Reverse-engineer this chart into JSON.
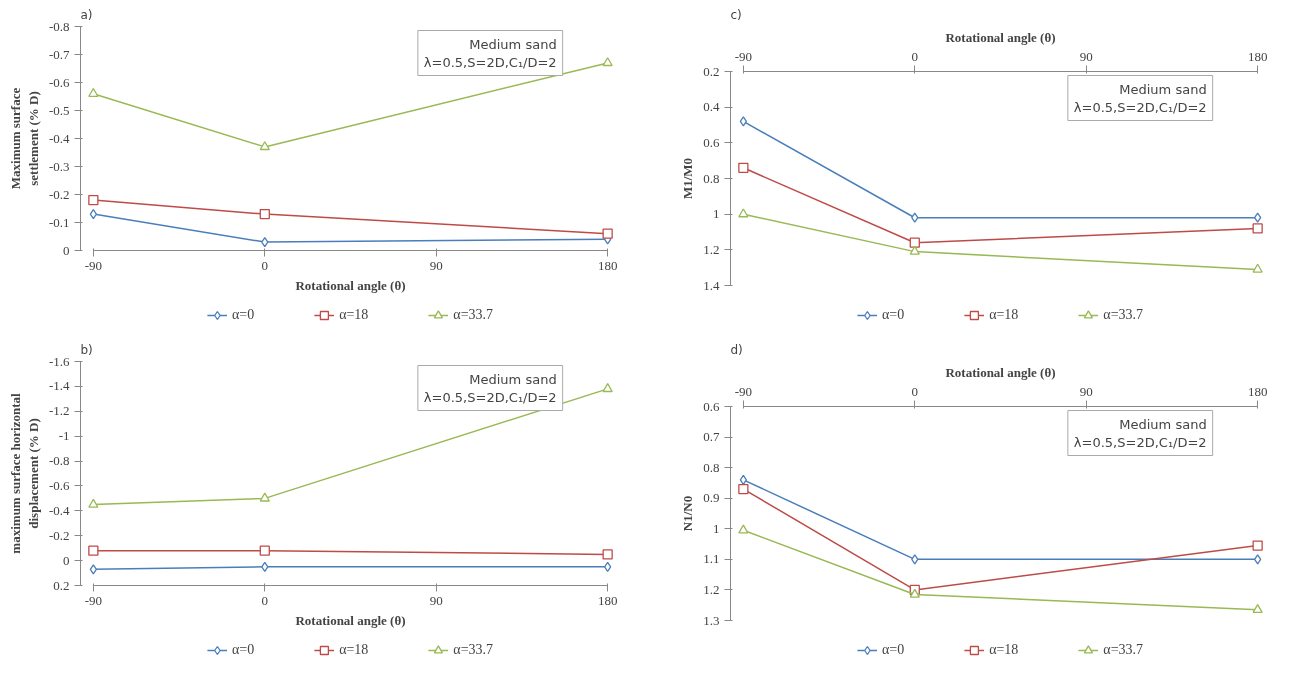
{
  "chart_data": [
    {
      "type": "line",
      "xlabel": "Rotational angle (θ)",
      "ylabel": "Maximum surface settlement (% D)",
      "x": [
        -90,
        0,
        180
      ],
      "xlim": [
        -90,
        180
      ],
      "xticks": [
        -90,
        0,
        90,
        180
      ],
      "ylim": [
        0,
        -0.8
      ],
      "yticks": [
        0,
        -0.1,
        -0.2,
        -0.3,
        -0.4,
        -0.5,
        -0.6,
        -0.7,
        -0.8
      ],
      "legend": "bottom",
      "grid": false,
      "annotations": [
        "a)",
        "Medium sand",
        "λ=0.5,S=2D,C₁/D=2"
      ],
      "series": [
        {
          "name": "α=0",
          "color": "#4a7ebb",
          "marker": "diamond",
          "values": [
            -0.13,
            -0.03,
            -0.04
          ]
        },
        {
          "name": "α=18",
          "color": "#be4b48",
          "marker": "square",
          "values": [
            -0.18,
            -0.13,
            -0.06
          ]
        },
        {
          "name": "α=33.7",
          "color": "#98b954",
          "marker": "triangle",
          "values": [
            -0.56,
            -0.37,
            -0.67
          ]
        }
      ]
    },
    {
      "type": "line",
      "xlabel": "Rotational angle (θ)",
      "ylabel": "M1/M0",
      "x": [
        -90,
        0,
        180
      ],
      "xlim": [
        -90,
        180
      ],
      "xticks": [
        -90,
        0,
        90,
        180
      ],
      "ylim": [
        1.4,
        0.2
      ],
      "yticks": [
        0.2,
        0.4,
        0.6,
        0.8,
        1,
        1.2,
        1.4
      ],
      "legend": "bottom",
      "grid": false,
      "annotations": [
        "c)",
        "Medium sand",
        "λ=0.5,S=2D,C₁/D=2"
      ],
      "series": [
        {
          "name": "α=0",
          "color": "#4a7ebb",
          "marker": "diamond",
          "values": [
            0.48,
            1.02,
            1.02
          ]
        },
        {
          "name": "α=18",
          "color": "#be4b48",
          "marker": "square",
          "values": [
            0.74,
            1.16,
            1.08
          ]
        },
        {
          "name": "α=33.7",
          "color": "#98b954",
          "marker": "triangle",
          "values": [
            1.0,
            1.21,
            1.31
          ]
        }
      ]
    },
    {
      "type": "line",
      "xlabel": "Rotational angle (θ)",
      "ylabel": "maximum surface horizontal displacement (% D)",
      "x": [
        -90,
        0,
        180
      ],
      "xlim": [
        -90,
        180
      ],
      "xticks": [
        -90,
        0,
        90,
        180
      ],
      "ylim": [
        0.2,
        -1.6
      ],
      "yticks": [
        0.2,
        0,
        -0.2,
        -0.4,
        -0.6,
        -0.8,
        -1,
        -1.2,
        -1.4,
        -1.6
      ],
      "legend": "bottom",
      "grid": false,
      "annotations": [
        "b)",
        "Medium sand",
        "λ=0.5,S=2D,C₁/D=2"
      ],
      "series": [
        {
          "name": "α=0",
          "color": "#4a7ebb",
          "marker": "diamond",
          "values": [
            0.07,
            0.05,
            0.05
          ]
        },
        {
          "name": "α=18",
          "color": "#be4b48",
          "marker": "square",
          "values": [
            -0.08,
            -0.08,
            -0.05
          ]
        },
        {
          "name": "α=33.7",
          "color": "#98b954",
          "marker": "triangle",
          "values": [
            -0.45,
            -0.5,
            -1.38
          ]
        }
      ]
    },
    {
      "type": "line",
      "xlabel": "Rotational angle (θ)",
      "ylabel": "N1/N0",
      "x": [
        -90,
        0,
        180
      ],
      "xlim": [
        -90,
        180
      ],
      "xticks": [
        -90,
        0,
        90,
        180
      ],
      "ylim": [
        1.3,
        0.6
      ],
      "yticks": [
        0.6,
        0.7,
        0.8,
        0.9,
        1,
        1.1,
        1.2,
        1.3
      ],
      "legend": "bottom",
      "grid": false,
      "annotations": [
        "d)",
        "Medium sand",
        "λ=0.5,S=2D,C₁/D=2"
      ],
      "series": [
        {
          "name": "α=0",
          "color": "#4a7ebb",
          "marker": "diamond",
          "values": [
            0.84,
            1.1,
            1.1
          ]
        },
        {
          "name": "α=18",
          "color": "#be4b48",
          "marker": "square",
          "values": [
            0.87,
            1.2,
            1.055
          ]
        },
        {
          "name": "α=33.7",
          "color": "#98b954",
          "marker": "triangle",
          "values": [
            1.005,
            1.215,
            1.265
          ]
        }
      ]
    }
  ]
}
